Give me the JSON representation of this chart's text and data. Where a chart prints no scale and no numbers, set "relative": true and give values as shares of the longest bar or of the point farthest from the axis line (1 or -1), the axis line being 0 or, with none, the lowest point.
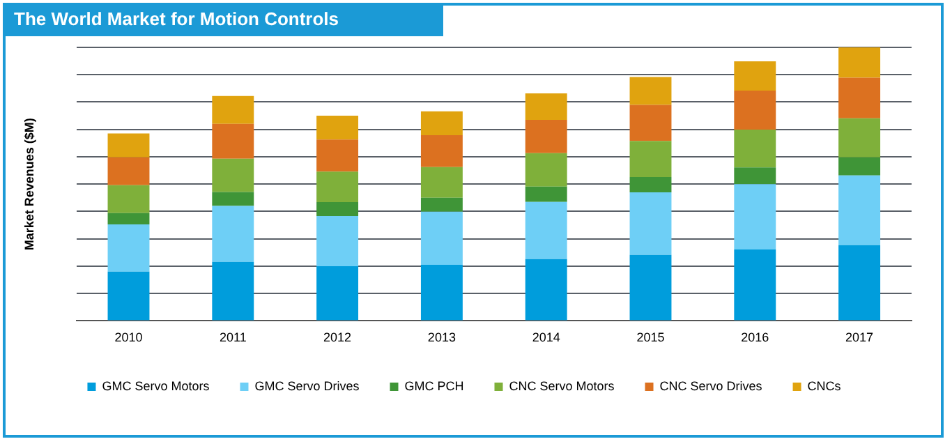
{
  "chart_data": {
    "type": "bar",
    "title": "The World Market for Motion Controls",
    "ylabel": "Market Revenues ($M)",
    "categories": [
      "2010",
      "2011",
      "2012",
      "2013",
      "2014",
      "2015",
      "2016",
      "2017"
    ],
    "stacked": true,
    "relative": true,
    "grid": "y",
    "legend": "bottom",
    "series": [
      {
        "name": "GMC Servo Motors",
        "color": "#009ddc",
        "values": [
          0.18,
          0.216,
          0.2,
          0.205,
          0.226,
          0.241,
          0.261,
          0.277
        ]
      },
      {
        "name": "GMC Servo Drives",
        "color": "#6ecff6",
        "values": [
          0.173,
          0.204,
          0.183,
          0.194,
          0.209,
          0.229,
          0.239,
          0.255
        ]
      },
      {
        "name": "GMC PCH",
        "color": "#3f9537",
        "values": [
          0.041,
          0.051,
          0.051,
          0.051,
          0.056,
          0.056,
          0.061,
          0.066
        ]
      },
      {
        "name": "CNC Servo Motors",
        "color": "#7fb03a",
        "values": [
          0.102,
          0.122,
          0.112,
          0.112,
          0.122,
          0.132,
          0.138,
          0.143
        ]
      },
      {
        "name": "CNC Servo Drives",
        "color": "#dc7120",
        "values": [
          0.102,
          0.127,
          0.117,
          0.117,
          0.122,
          0.132,
          0.143,
          0.148
        ]
      },
      {
        "name": "CNCs",
        "color": "#e0a30f",
        "values": [
          0.087,
          0.102,
          0.087,
          0.087,
          0.097,
          0.102,
          0.107,
          0.111
        ]
      }
    ]
  }
}
